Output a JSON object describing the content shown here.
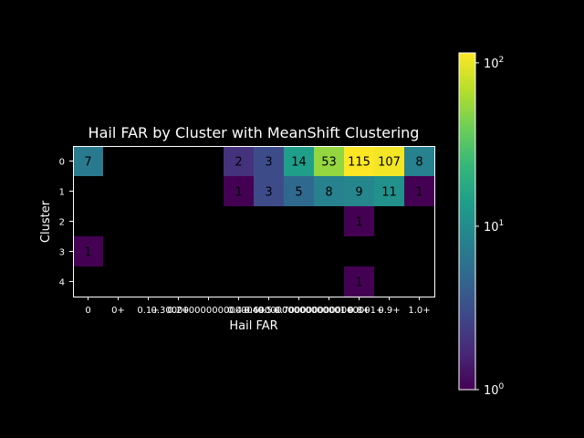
{
  "chart_data": {
    "type": "heatmap",
    "title": "Hail FAR by Cluster with MeanShift Clustering",
    "xlabel": "Hail FAR",
    "ylabel": "Cluster",
    "x_categories": [
      "0",
      "0+",
      "0.1+",
      "0.2+",
      "0.30000000000000004+",
      "0.4+",
      "0.5+",
      "0.6000000000000001+",
      "0.7000000000000001+",
      "0.8+",
      "0.9+",
      "1.0+"
    ],
    "x_tick_labels": [
      "0",
      "0+",
      "0.1+",
      "0.2+",
      "0.30000000000000004+",
      "0.4+",
      "0.5+",
      "0.6000000000000001+",
      "0.7000000000000001+",
      "0.8+",
      "0.9+",
      "1.0+"
    ],
    "y_categories": [
      "0",
      "1",
      "2",
      "3",
      "4"
    ],
    "values": [
      [
        7,
        null,
        null,
        null,
        null,
        2,
        3,
        14,
        53,
        115,
        107,
        8
      ],
      [
        null,
        null,
        null,
        null,
        null,
        1,
        3,
        5,
        8,
        9,
        11,
        1
      ],
      [
        null,
        null,
        null,
        null,
        null,
        null,
        null,
        null,
        null,
        1,
        null,
        null
      ],
      [
        1,
        null,
        null,
        null,
        null,
        null,
        null,
        null,
        null,
        null,
        null,
        null
      ],
      [
        null,
        null,
        null,
        null,
        null,
        null,
        null,
        null,
        null,
        1,
        null,
        null
      ]
    ],
    "colorbar": {
      "scale": "log",
      "min": 1,
      "max": 115,
      "colormap": "viridis",
      "ticks": [
        {
          "value": 1,
          "base": "10",
          "exp": "0"
        },
        {
          "value": 10,
          "base": "10",
          "exp": "1"
        },
        {
          "value": 100,
          "base": "10",
          "exp": "2"
        }
      ]
    },
    "grid": false,
    "background": "#000000",
    "text_color": "#ffffff",
    "annotation_color": "#000000"
  }
}
